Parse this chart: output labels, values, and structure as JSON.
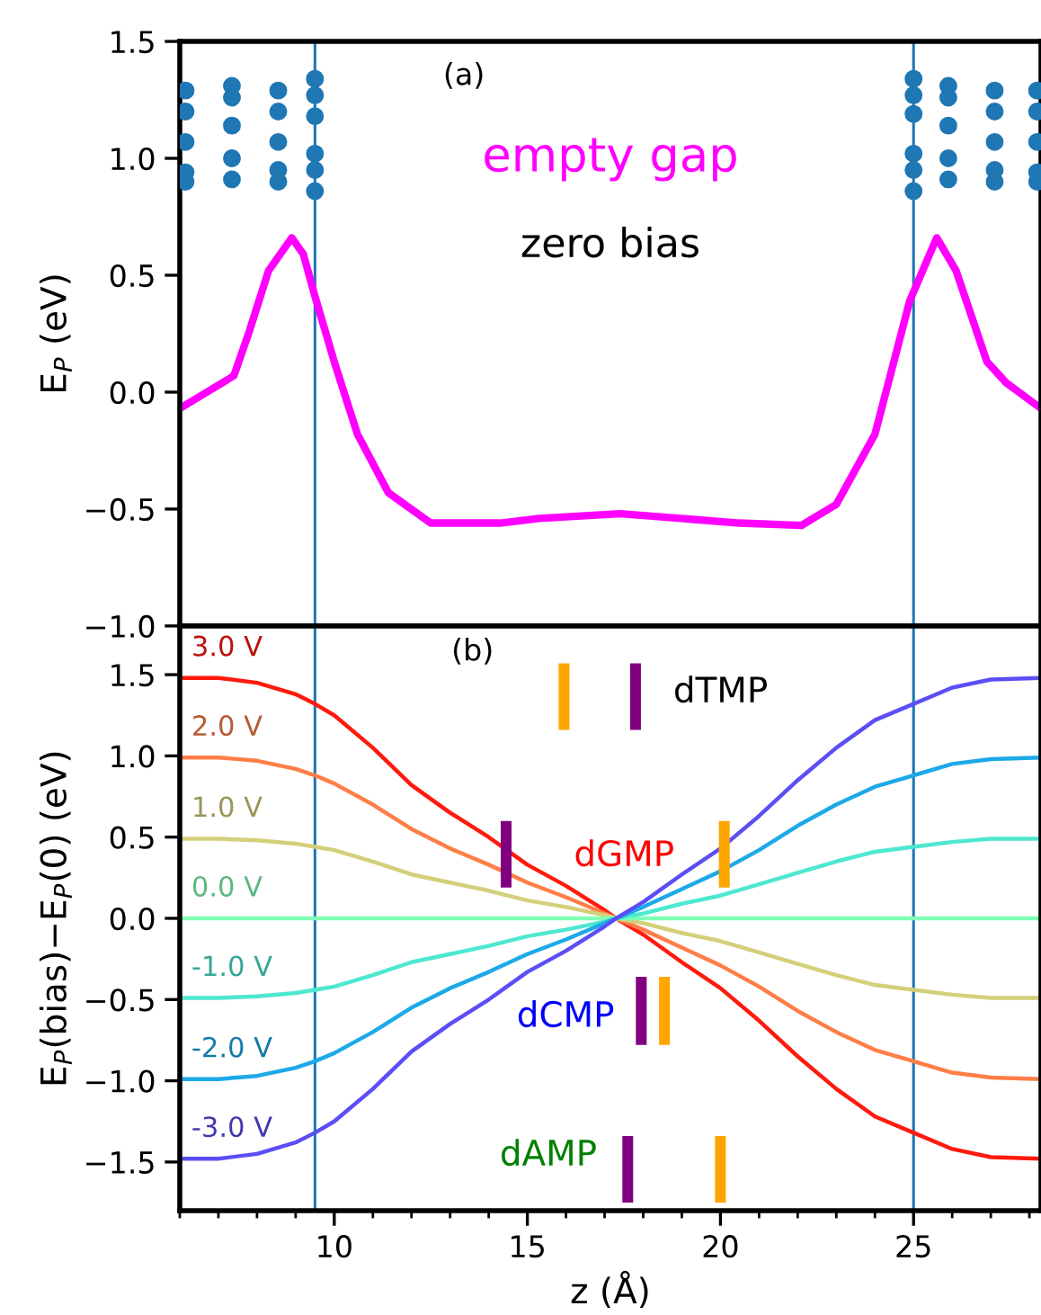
{
  "chart_data": [
    {
      "type": "line",
      "ylabel": "E$_{P}$ (eV)",
      "xlim": [
        6,
        28.3
      ],
      "ylim": [
        -1.0,
        1.5
      ],
      "yticks": [
        {
          "value": -1.0,
          "label": "−1.0"
        },
        {
          "value": -0.5,
          "label": "−0.5"
        },
        {
          "value": 0.0,
          "label": "0.0"
        },
        {
          "value": 0.5,
          "label": "0.5"
        },
        {
          "value": 1.0,
          "label": "1.0"
        },
        {
          "value": 1.5,
          "label": "1.5"
        }
      ],
      "tick_labels": "y",
      "grid": false,
      "legend": false,
      "annotations": [
        "(a)",
        "zero bias"
      ],
      "ref_lines": [
        {
          "axis": "x",
          "value": 9.5,
          "color": "#1f77b4"
        },
        {
          "axis": "x",
          "value": 25,
          "color": "#1f77b4"
        }
      ],
      "series": [
        {
          "name": "empty gap",
          "color": "#ff00ff",
          "x": [
            6,
            6.7,
            7.4,
            7.8,
            8.3,
            8.9,
            9.2,
            9.5,
            10,
            10.6,
            11.4,
            12.5,
            14.3,
            15.3,
            17.4,
            20.5,
            22.1,
            23,
            24,
            24.9,
            25.6,
            26.1,
            26.9,
            27.4,
            28.3
          ],
          "values": [
            -0.07,
            0.0,
            0.07,
            0.26,
            0.52,
            0.66,
            0.59,
            0.41,
            0.13,
            -0.18,
            -0.43,
            -0.56,
            -0.56,
            -0.54,
            -0.52,
            -0.56,
            -0.57,
            -0.48,
            -0.18,
            0.39,
            0.66,
            0.52,
            0.13,
            0.04,
            -0.07
          ]
        },
        {
          "type": "scatter",
          "color": "#1f77b4",
          "marker": "circle",
          "x": [
            6.15,
            6.15,
            6.15,
            6.15,
            6.15,
            7.35,
            7.35,
            7.35,
            7.35,
            7.35,
            8.55,
            8.55,
            8.55,
            8.55,
            8.55,
            9.5,
            9.5,
            9.5,
            9.5,
            9.5,
            9.5,
            25,
            25,
            25,
            25,
            25,
            25,
            25.9,
            25.9,
            25.9,
            25.9,
            25.9,
            27.1,
            27.1,
            27.1,
            27.1,
            27.1,
            28.2,
            28.2,
            28.2,
            28.2,
            28.2
          ],
          "values": [
            1.29,
            1.2,
            1.07,
            0.94,
            0.9,
            1.31,
            1.26,
            1.14,
            1.0,
            0.91,
            1.29,
            1.2,
            1.07,
            0.95,
            0.9,
            1.34,
            1.27,
            1.18,
            1.02,
            0.95,
            0.86,
            1.34,
            1.27,
            1.19,
            1.02,
            0.95,
            0.86,
            1.31,
            1.26,
            1.14,
            1.0,
            0.91,
            1.29,
            1.2,
            1.07,
            0.95,
            0.9,
            1.29,
            1.2,
            1.07,
            0.94,
            0.9
          ]
        }
      ]
    },
    {
      "type": "line",
      "xlabel": "z (Å)",
      "ylabel": "E$_{P}$(bias)−E$_{P}$(0) (eV)",
      "xlim": [
        6,
        28.3
      ],
      "ylim": [
        -1.8,
        1.8
      ],
      "xticks": [
        10,
        15,
        20,
        25
      ],
      "yticks": [
        {
          "value": -1.5,
          "label": "−1.5"
        },
        {
          "value": -1.0,
          "label": "−1.0"
        },
        {
          "value": -0.5,
          "label": "−0.5"
        },
        {
          "value": 0.0,
          "label": "0.0"
        },
        {
          "value": 0.5,
          "label": "0.5"
        },
        {
          "value": 1.0,
          "label": "1.0"
        },
        {
          "value": 1.5,
          "label": "1.5"
        }
      ],
      "grid": false,
      "legend": false,
      "annotations": [
        "(b)",
        "dTMP",
        "dGMP",
        "dCMP",
        "dAMP"
      ],
      "ref_lines": [
        {
          "axis": "x",
          "value": 9.5,
          "color": "#1f77b4"
        },
        {
          "axis": "x",
          "value": 25,
          "color": "#1f77b4"
        }
      ],
      "x": [
        6,
        7,
        8,
        9,
        9.5,
        10,
        11,
        12,
        13,
        14,
        15,
        16,
        17,
        17.3,
        18,
        19,
        20,
        21,
        22,
        23,
        24,
        25,
        26,
        27,
        28.3
      ],
      "series": [
        {
          "name": "3.0 V",
          "type": "line",
          "color": "#ff1a0e",
          "values": [
            1.48,
            1.48,
            1.45,
            1.38,
            1.32,
            1.25,
            1.05,
            0.82,
            0.65,
            0.5,
            0.33,
            0.2,
            0.05,
            0,
            -0.1,
            -0.27,
            -0.43,
            -0.63,
            -0.85,
            -1.05,
            -1.22,
            -1.32,
            -1.42,
            -1.47,
            -1.48
          ]
        },
        {
          "name": "2.0 V",
          "type": "line",
          "color": "#ff7e47",
          "values": [
            0.99,
            0.99,
            0.97,
            0.92,
            0.88,
            0.83,
            0.7,
            0.55,
            0.43,
            0.33,
            0.22,
            0.13,
            0.03,
            0,
            -0.07,
            -0.18,
            -0.29,
            -0.42,
            -0.57,
            -0.7,
            -0.81,
            -0.88,
            -0.95,
            -0.98,
            -0.99
          ]
        },
        {
          "name": "1.0 V",
          "type": "line",
          "color": "#d4cf7a",
          "values": [
            0.49,
            0.49,
            0.48,
            0.46,
            0.44,
            0.42,
            0.35,
            0.27,
            0.22,
            0.17,
            0.11,
            0.07,
            0.02,
            0,
            -0.03,
            -0.09,
            -0.14,
            -0.21,
            -0.28,
            -0.35,
            -0.41,
            -0.44,
            -0.47,
            -0.49,
            -0.49
          ]
        },
        {
          "name": "0.0 V",
          "type": "line",
          "color": "#80ffb4",
          "values": [
            0,
            0,
            0,
            0,
            0,
            0,
            0,
            0,
            0,
            0,
            0,
            0,
            0,
            0,
            0,
            0,
            0,
            0,
            0,
            0,
            0,
            0,
            0,
            0,
            0
          ]
        },
        {
          "name": "-1.0 V",
          "type": "line",
          "color": "#4de8d0",
          "values": [
            -0.49,
            -0.49,
            -0.48,
            -0.46,
            -0.44,
            -0.42,
            -0.35,
            -0.27,
            -0.22,
            -0.17,
            -0.11,
            -0.07,
            -0.02,
            0,
            0.03,
            0.09,
            0.14,
            0.21,
            0.28,
            0.35,
            0.41,
            0.44,
            0.47,
            0.49,
            0.49
          ]
        },
        {
          "name": "-2.0 V",
          "type": "line",
          "color": "#1ca9e8",
          "values": [
            -0.99,
            -0.99,
            -0.97,
            -0.92,
            -0.88,
            -0.83,
            -0.7,
            -0.55,
            -0.43,
            -0.33,
            -0.22,
            -0.13,
            -0.03,
            0,
            0.07,
            0.18,
            0.29,
            0.42,
            0.57,
            0.7,
            0.81,
            0.88,
            0.95,
            0.98,
            0.99
          ]
        },
        {
          "name": "-3.0 V",
          "type": "line",
          "color": "#5b4ef5",
          "values": [
            -1.48,
            -1.48,
            -1.45,
            -1.38,
            -1.32,
            -1.25,
            -1.05,
            -0.82,
            -0.65,
            -0.5,
            -0.33,
            -0.2,
            -0.05,
            0,
            0.1,
            0.27,
            0.43,
            0.63,
            0.85,
            1.05,
            1.22,
            1.32,
            1.42,
            1.47,
            1.48
          ]
        },
        {
          "type": "bar",
          "color": "#800080",
          "x": [
            14.45,
            17.6,
            17.8,
            17.95
          ],
          "base": [
            0.19,
            -1.75,
            1.16,
            -0.78
          ],
          "values": [
            0.41,
            0.41,
            0.41,
            0.42
          ]
        },
        {
          "type": "bar",
          "color": "#ffa500",
          "x": [
            15.95,
            18.55,
            20.0,
            20.1
          ],
          "base": [
            1.16,
            -0.78,
            -1.75,
            0.19
          ],
          "values": [
            0.41,
            0.42,
            0.41,
            0.41
          ]
        }
      ]
    }
  ]
}
